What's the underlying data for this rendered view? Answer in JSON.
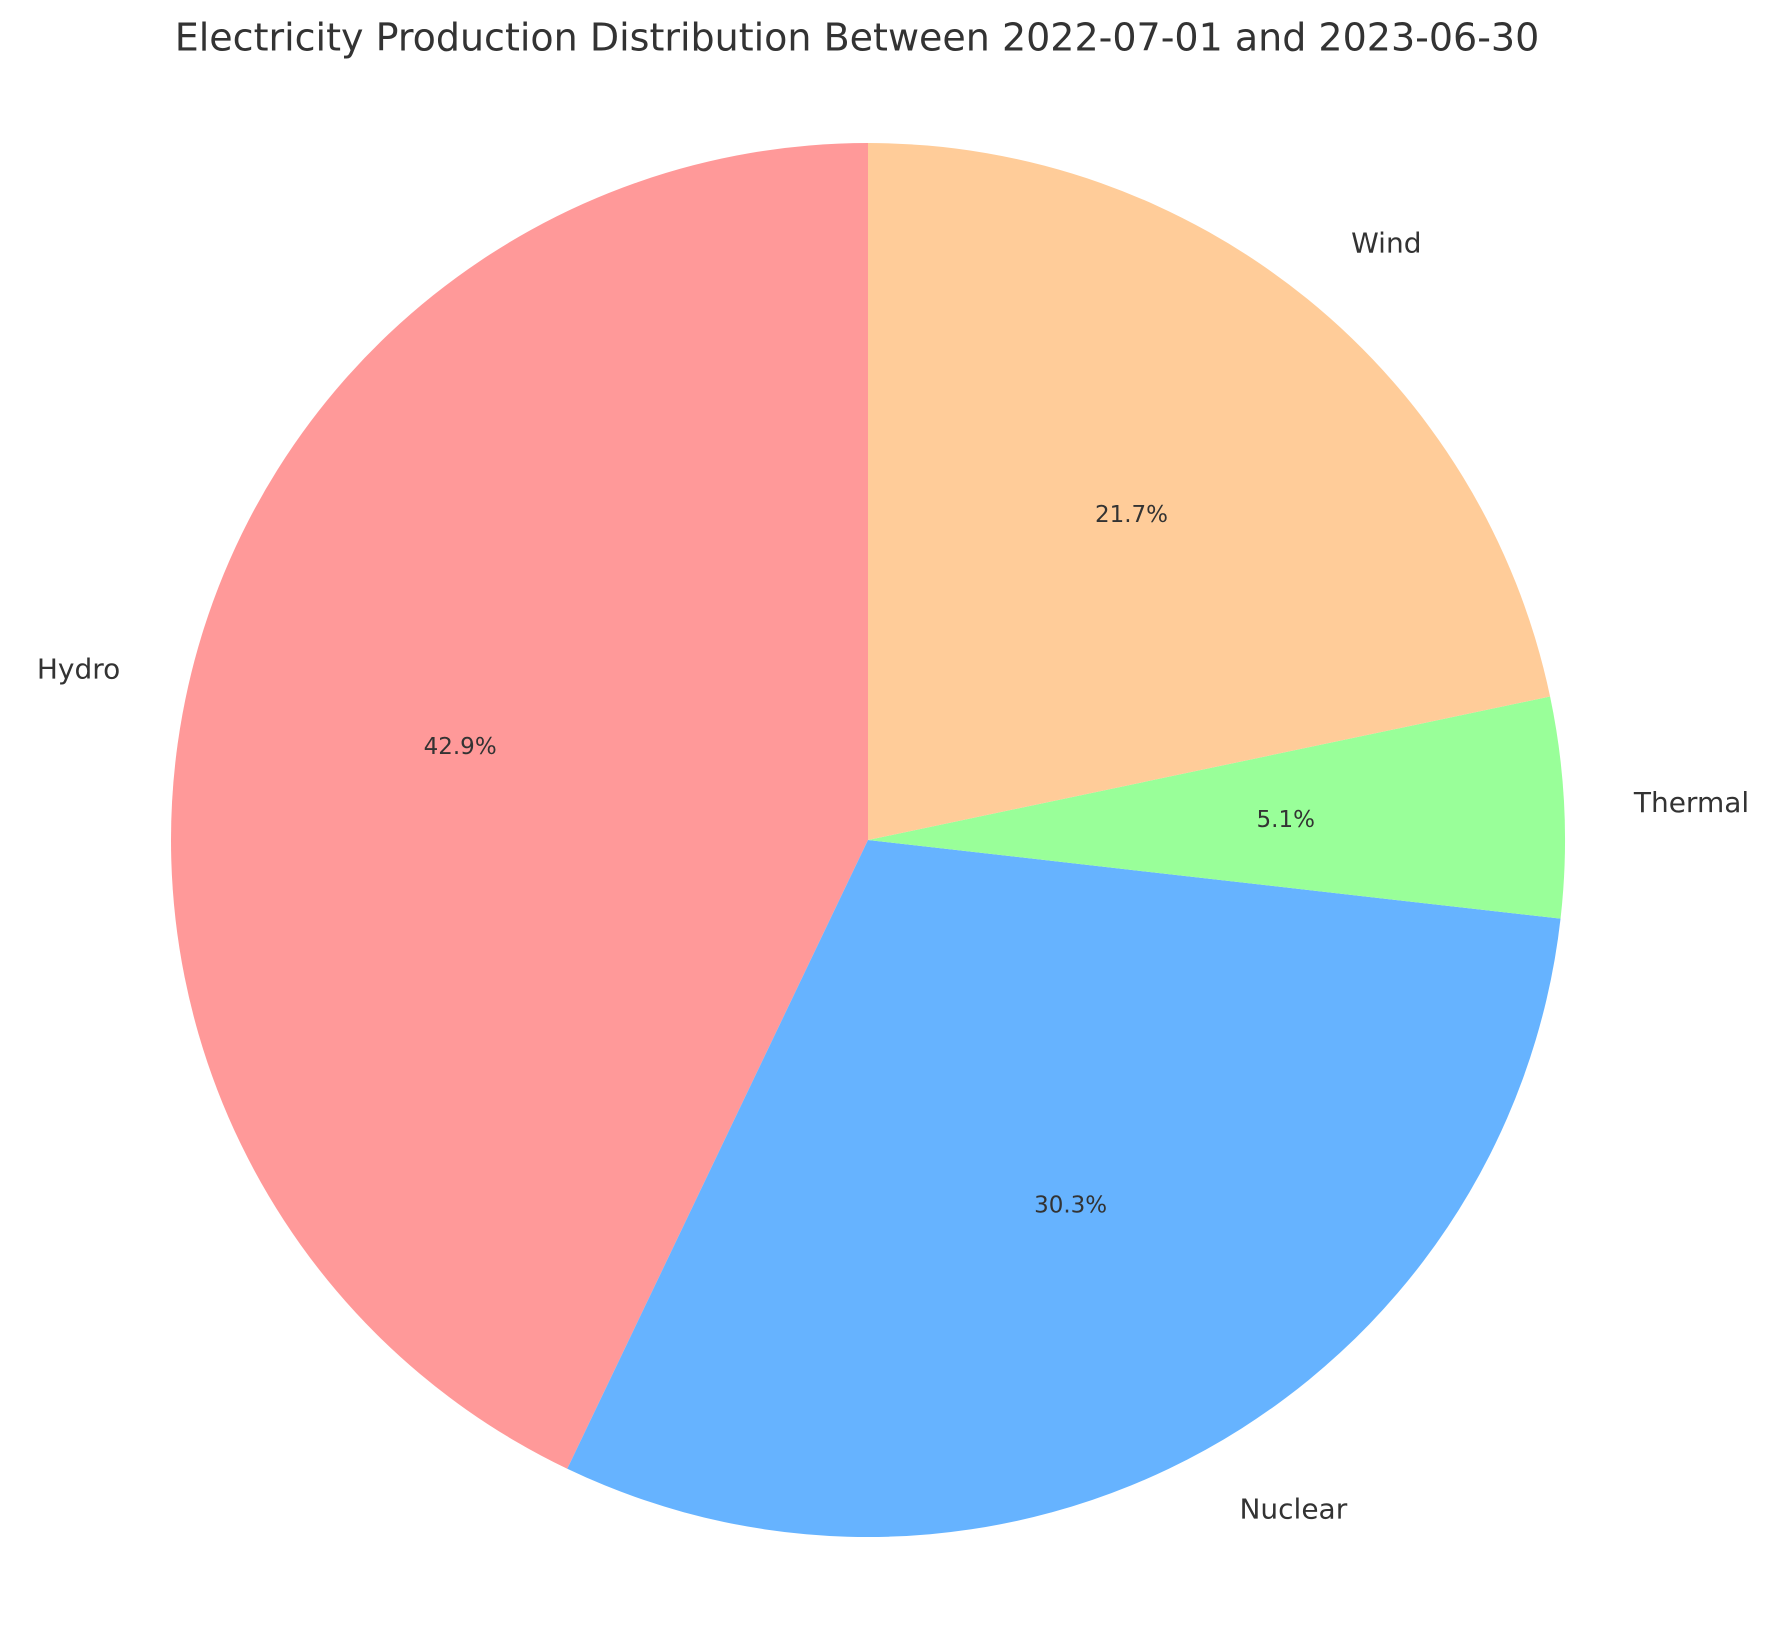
{
  "chart_data": {
    "type": "pie",
    "title": "Electricity Production Distribution Between 2022-07-01 and 2023-06-30",
    "categories": [
      "Hydro",
      "Nuclear",
      "Thermal",
      "Wind"
    ],
    "values": [
      42.9,
      30.3,
      5.1,
      21.7
    ],
    "value_labels": [
      "42.9%",
      "30.3%",
      "5.1%",
      "21.7%"
    ],
    "colors": [
      "#ff9999",
      "#66b3ff",
      "#99ff99",
      "#ffcc99"
    ],
    "start_angle": 90,
    "direction": "counterclockwise"
  }
}
